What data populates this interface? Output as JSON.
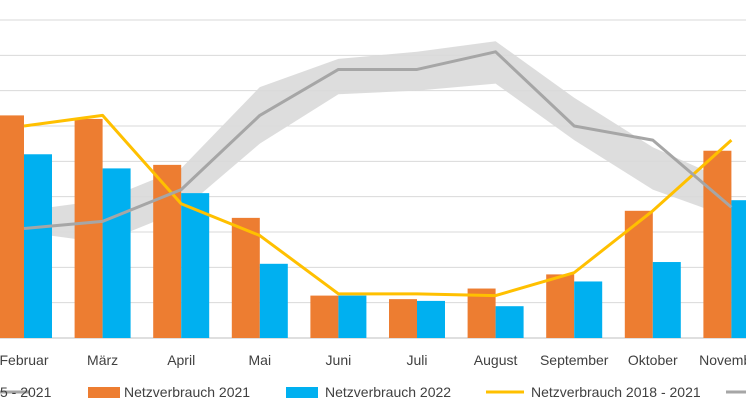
{
  "chart_data": {
    "type": "bar",
    "categories": [
      "Februar",
      "März",
      "April",
      "Mai",
      "Juni",
      "Juli",
      "August",
      "September",
      "Oktober",
      "November"
    ],
    "ylim": [
      0,
      9
    ],
    "grid": true,
    "legend_position": "bottom",
    "series": [
      {
        "name": "Netzverbrauch 2021",
        "kind": "bar",
        "color": "#ED7D31",
        "values": [
          6.3,
          6.2,
          4.9,
          3.4,
          1.2,
          1.1,
          1.4,
          1.8,
          3.6,
          5.3
        ]
      },
      {
        "name": "Netzverbrauch 2022",
        "kind": "bar",
        "color": "#00B0F0",
        "values": [
          5.2,
          4.8,
          4.1,
          2.1,
          1.2,
          1.05,
          0.9,
          1.6,
          2.15,
          3.9
        ]
      },
      {
        "name": "Netzverbrauch 2018 - 2021",
        "kind": "line",
        "color": "#FFC000",
        "values": [
          6.0,
          6.3,
          3.8,
          2.9,
          1.25,
          1.25,
          1.2,
          1.85,
          3.6,
          5.6
        ]
      },
      {
        "name": "5 - 2021",
        "kind": "line",
        "color": "#A6A6A6",
        "values": [
          3.1,
          3.3,
          4.2,
          6.3,
          7.6,
          7.6,
          8.1,
          6.0,
          5.6,
          3.7
        ]
      },
      {
        "name": "range",
        "kind": "area",
        "color": "#D9D9D9",
        "low": [
          3.0,
          2.7,
          3.6,
          5.5,
          6.9,
          7.0,
          7.2,
          5.6,
          4.2,
          3.4
        ],
        "high": [
          3.6,
          3.9,
          4.8,
          7.1,
          7.9,
          8.1,
          8.4,
          6.8,
          5.4,
          4.4
        ]
      }
    ]
  },
  "legend": [
    {
      "label": "5 - 2021",
      "kind": "line",
      "color": "#A6A6A6"
    },
    {
      "label": "Netzverbrauch 2021",
      "kind": "bar",
      "color": "#ED7D31"
    },
    {
      "label": "Netzverbrauch 2022",
      "kind": "bar",
      "color": "#00B0F0"
    },
    {
      "label": "Netzverbrauch 2018 - 2021",
      "kind": "line",
      "color": "#FFC000"
    },
    {
      "label": "",
      "kind": "line",
      "color": "#A6A6A6"
    }
  ]
}
